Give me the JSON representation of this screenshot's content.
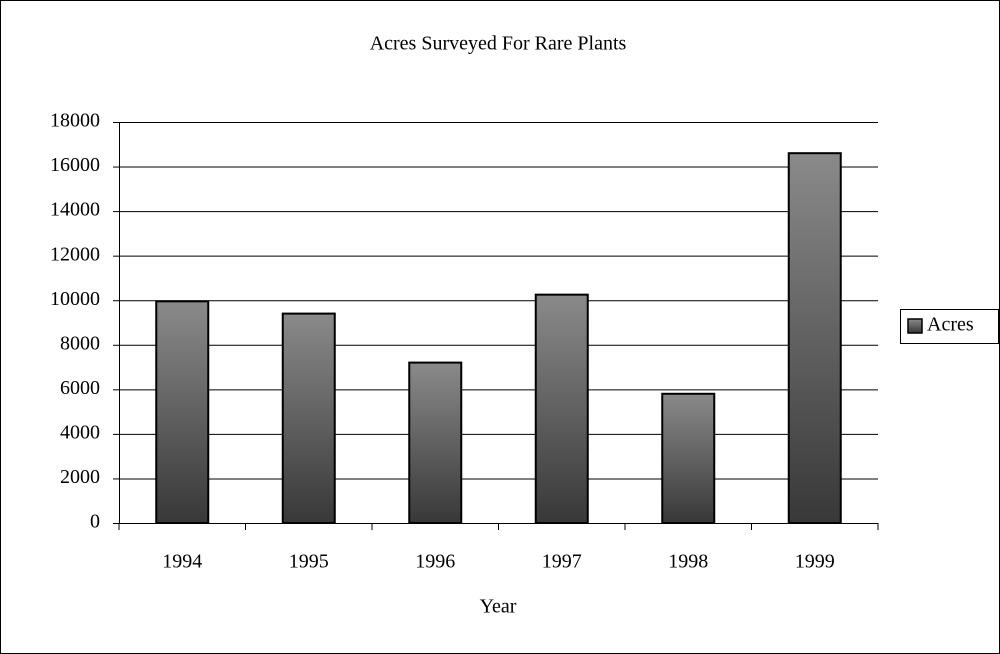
{
  "chart_data": {
    "type": "bar",
    "title": "Acres Surveyed For Rare Plants",
    "x_label": "Year",
    "categories": [
      "1994",
      "1995",
      "1996",
      "1997",
      "1998",
      "1999"
    ],
    "series": [
      {
        "name": "Acres",
        "color": "#8a8a8a",
        "values": [
          9950,
          9400,
          7200,
          10250,
          5800,
          16600
        ]
      }
    ],
    "ylim": [
      0,
      18000
    ],
    "yticks": [
      0,
      2000,
      4000,
      6000,
      8000,
      10000,
      12000,
      14000,
      16000,
      18000
    ],
    "grid": true,
    "legend": "right"
  }
}
